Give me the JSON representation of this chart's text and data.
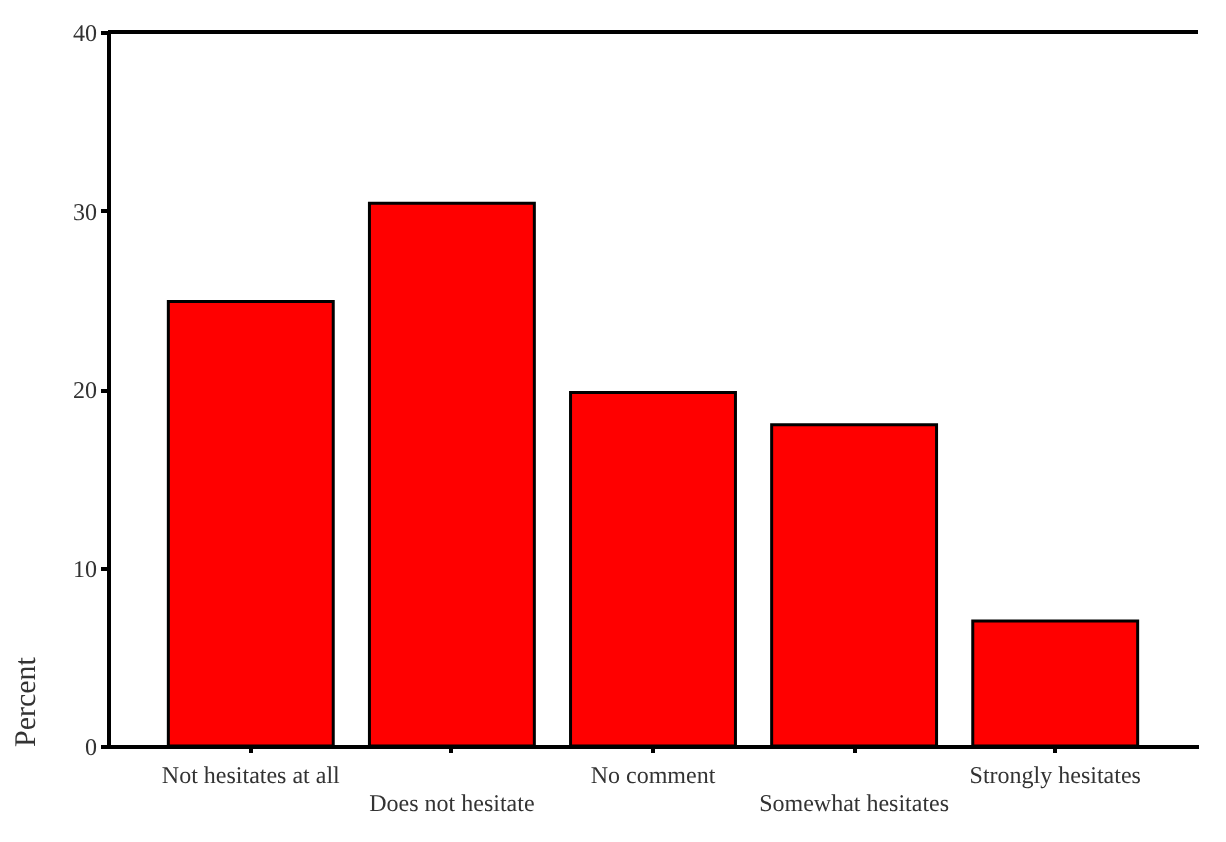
{
  "chart_data": {
    "type": "bar",
    "ylabel": "Percent",
    "categories": [
      "Not hesitates at all",
      "Does not hesitate",
      "No comment",
      "Somewhat hesitates",
      "Strongly hesitates"
    ],
    "values": [
      24.9,
      30.4,
      19.8,
      18.0,
      7.0
    ],
    "color": "#ff0000",
    "ylim": [
      0,
      40
    ],
    "yticks": [
      0,
      10,
      20,
      30,
      40
    ],
    "grid": false
  }
}
